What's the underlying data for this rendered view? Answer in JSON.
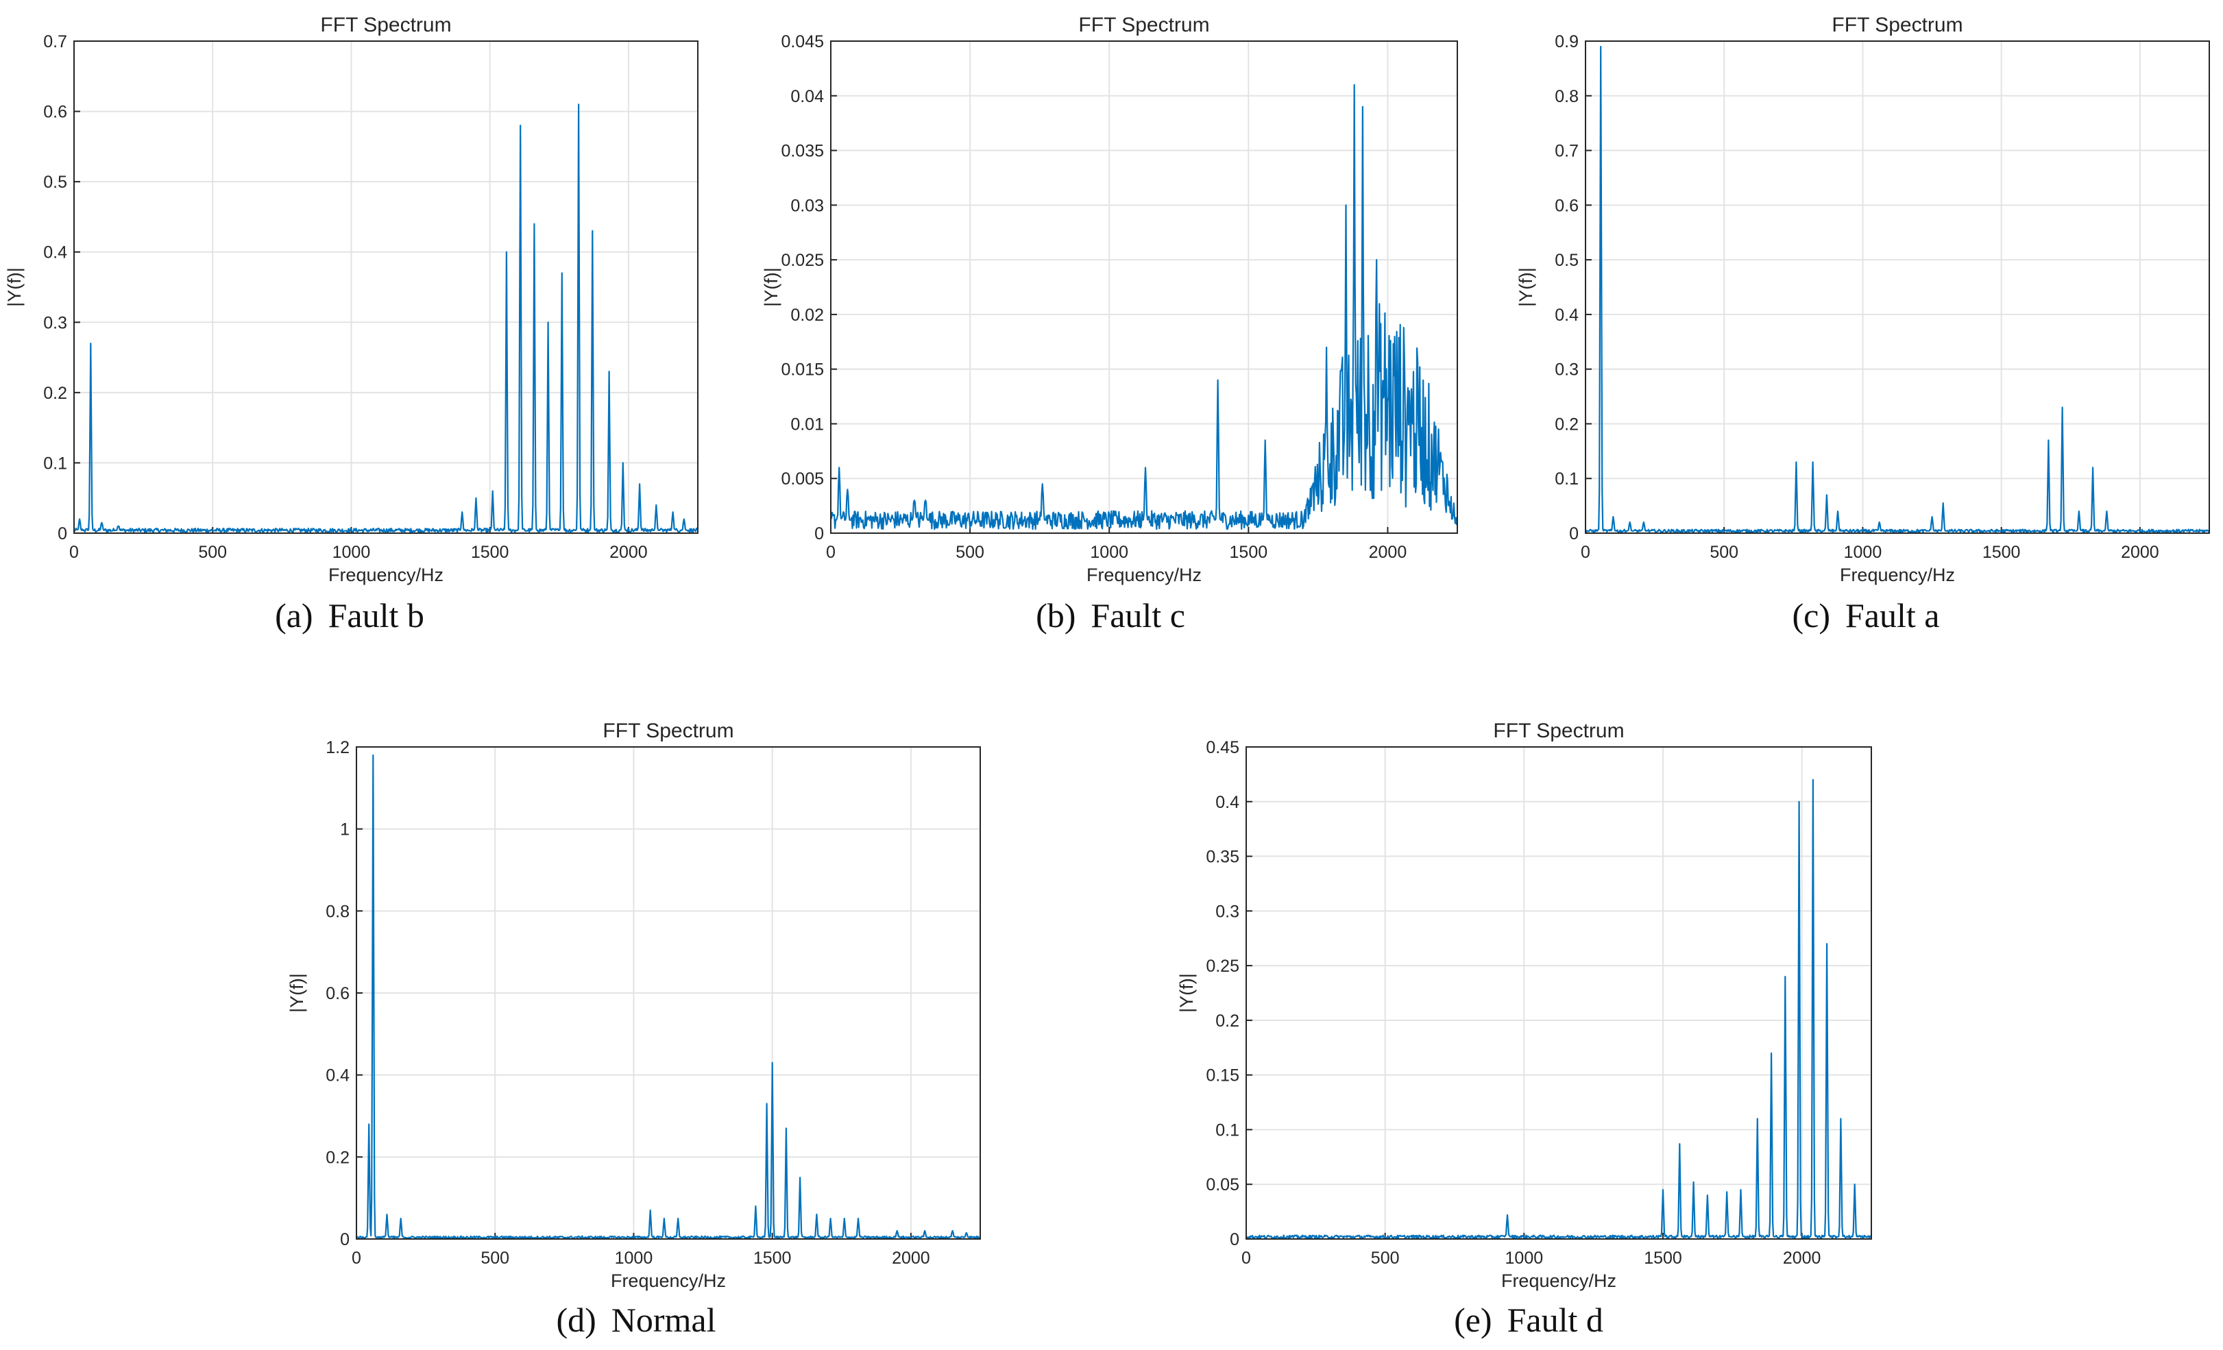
{
  "figure": {
    "series_color": "#0072BD",
    "panels": [
      {
        "caption_letter": "(a)",
        "caption_text": "Fault b",
        "chart_data": {
          "type": "line",
          "title": "FFT Spectrum",
          "xlabel": "Frequency/Hz",
          "ylabel": "|Y(f)|",
          "xlim": [
            0,
            2250
          ],
          "ylim": [
            0,
            0.7
          ],
          "xticks": [
            "0",
            "500",
            "1000",
            "1500",
            "2000"
          ],
          "yticks": [
            "0",
            "0.1",
            "0.2",
            "0.3",
            "0.4",
            "0.5",
            "0.6",
            "0.7"
          ],
          "grid": true,
          "peaks": [
            [
              20,
              0.02
            ],
            [
              60,
              0.27
            ],
            [
              100,
              0.015
            ],
            [
              160,
              0.01
            ],
            [
              1400,
              0.03
            ],
            [
              1450,
              0.05
            ],
            [
              1510,
              0.06
            ],
            [
              1560,
              0.4
            ],
            [
              1610,
              0.58
            ],
            [
              1660,
              0.44
            ],
            [
              1710,
              0.3
            ],
            [
              1760,
              0.37
            ],
            [
              1820,
              0.61
            ],
            [
              1870,
              0.43
            ],
            [
              1930,
              0.23
            ],
            [
              1980,
              0.1
            ],
            [
              2040,
              0.07
            ],
            [
              2100,
              0.04
            ],
            [
              2160,
              0.03
            ],
            [
              2200,
              0.02
            ]
          ],
          "noise_floor": 0.004
        }
      },
      {
        "caption_letter": "(b)",
        "caption_text": "Fault c",
        "chart_data": {
          "type": "line",
          "title": "FFT Spectrum",
          "xlabel": "Frequency/Hz",
          "ylabel": "|Y(f)|",
          "xlim": [
            0,
            2250
          ],
          "ylim": [
            0,
            0.045
          ],
          "xticks": [
            "0",
            "500",
            "1000",
            "1500",
            "2000"
          ],
          "yticks": [
            "0",
            "0.005",
            "0.01",
            "0.015",
            "0.02",
            "0.025",
            "0.03",
            "0.035",
            "0.04",
            "0.045"
          ],
          "grid": true,
          "peaks": [
            [
              30,
              0.006
            ],
            [
              60,
              0.004
            ],
            [
              300,
              0.003
            ],
            [
              340,
              0.003
            ],
            [
              760,
              0.0045
            ],
            [
              1130,
              0.006
            ],
            [
              1390,
              0.014
            ],
            [
              1560,
              0.0085
            ],
            [
              1780,
              0.017
            ],
            [
              1850,
              0.03
            ],
            [
              1880,
              0.041
            ],
            [
              1910,
              0.039
            ],
            [
              1960,
              0.025
            ],
            [
              2080,
              0.011
            ]
          ],
          "noise_floor": 0.0012,
          "noise_band": [
            1700,
            2250,
            0.012
          ]
        }
      },
      {
        "caption_letter": "(c)",
        "caption_text": "Fault a",
        "chart_data": {
          "type": "line",
          "title": "FFT Spectrum",
          "xlabel": "Frequency/Hz",
          "ylabel": "|Y(f)|",
          "xlim": [
            0,
            2250
          ],
          "ylim": [
            0,
            0.9
          ],
          "xticks": [
            "0",
            "500",
            "1000",
            "1500",
            "2000"
          ],
          "yticks": [
            "0",
            "0.1",
            "0.2",
            "0.3",
            "0.4",
            "0.5",
            "0.6",
            "0.7",
            "0.8",
            "0.9"
          ],
          "grid": true,
          "peaks": [
            [
              55,
              0.89
            ],
            [
              100,
              0.03
            ],
            [
              160,
              0.02
            ],
            [
              210,
              0.02
            ],
            [
              760,
              0.13
            ],
            [
              820,
              0.13
            ],
            [
              870,
              0.07
            ],
            [
              910,
              0.04
            ],
            [
              1060,
              0.02
            ],
            [
              1250,
              0.03
            ],
            [
              1290,
              0.055
            ],
            [
              1670,
              0.17
            ],
            [
              1720,
              0.23
            ],
            [
              1780,
              0.04
            ],
            [
              1830,
              0.12
            ],
            [
              1880,
              0.04
            ]
          ],
          "noise_floor": 0.004
        }
      },
      {
        "caption_letter": "(d)",
        "caption_text": "Normal",
        "chart_data": {
          "type": "line",
          "title": "FFT Spectrum",
          "xlabel": "Frequency/Hz",
          "ylabel": "|Y(f)|",
          "xlim": [
            0,
            2250
          ],
          "ylim": [
            0,
            1.2
          ],
          "xticks": [
            "0",
            "500",
            "1000",
            "1500",
            "2000"
          ],
          "yticks": [
            "0",
            "0.2",
            "0.4",
            "0.6",
            "0.8",
            "1",
            "1.2"
          ],
          "grid": true,
          "peaks": [
            [
              45,
              0.28
            ],
            [
              60,
              1.18
            ],
            [
              110,
              0.06
            ],
            [
              160,
              0.05
            ],
            [
              1060,
              0.07
            ],
            [
              1110,
              0.05
            ],
            [
              1160,
              0.05
            ],
            [
              1440,
              0.08
            ],
            [
              1480,
              0.33
            ],
            [
              1500,
              0.43
            ],
            [
              1550,
              0.27
            ],
            [
              1600,
              0.15
            ],
            [
              1660,
              0.06
            ],
            [
              1710,
              0.05
            ],
            [
              1760,
              0.05
            ],
            [
              1810,
              0.05
            ],
            [
              1950,
              0.02
            ],
            [
              2050,
              0.02
            ],
            [
              2150,
              0.02
            ],
            [
              2200,
              0.015
            ]
          ],
          "noise_floor": 0.004
        }
      },
      {
        "caption_letter": "(e)",
        "caption_text": "Fault d",
        "chart_data": {
          "type": "line",
          "title": "FFT Spectrum",
          "xlabel": "Frequency/Hz",
          "ylabel": "|Y(f)|",
          "xlim": [
            0,
            2250
          ],
          "ylim": [
            0,
            0.45
          ],
          "xticks": [
            "0",
            "500",
            "1000",
            "1500",
            "2000"
          ],
          "yticks": [
            "0",
            "0.05",
            "0.1",
            "0.15",
            "0.2",
            "0.25",
            "0.3",
            "0.35",
            "0.4",
            "0.45"
          ],
          "grid": true,
          "peaks": [
            [
              940,
              0.022
            ],
            [
              1500,
              0.045
            ],
            [
              1560,
              0.087
            ],
            [
              1610,
              0.052
            ],
            [
              1660,
              0.04
            ],
            [
              1730,
              0.043
            ],
            [
              1780,
              0.045
            ],
            [
              1840,
              0.11
            ],
            [
              1890,
              0.17
            ],
            [
              1940,
              0.24
            ],
            [
              1990,
              0.4
            ],
            [
              2040,
              0.42
            ],
            [
              2090,
              0.27
            ],
            [
              2140,
              0.11
            ],
            [
              2190,
              0.05
            ]
          ],
          "noise_floor": 0.002
        }
      }
    ]
  }
}
